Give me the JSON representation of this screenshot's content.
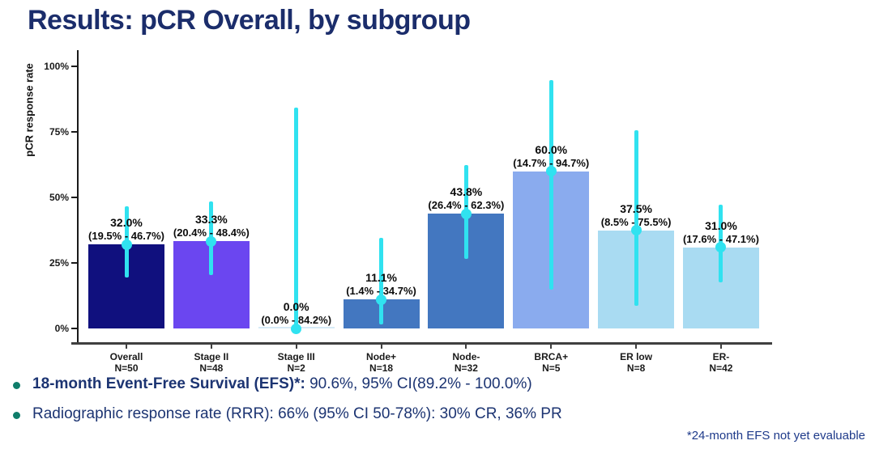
{
  "slide": {
    "title": "Results: pCR Overall, by subgroup",
    "footnote": "*24-month EFS not yet evaluable",
    "bullets": [
      {
        "bold": "18-month Event-Free Survival (EFS)*:",
        "rest": " 90.6%, 95% CI(89.2% - 100.0%)"
      },
      {
        "bold": "",
        "rest": "Radiographic response rate (RRR): 66% (95% CI 50-78%): 30% CR, 36% PR"
      }
    ]
  },
  "chart_data": {
    "type": "bar",
    "title": "",
    "xlabel": "",
    "ylabel": "pCR response rate",
    "ylim": [
      0,
      100
    ],
    "grid": false,
    "legend": null,
    "yticks": [
      0,
      25,
      50,
      75,
      100
    ],
    "ytick_labels": [
      "0%",
      "25%",
      "50%",
      "75%",
      "100%"
    ],
    "categories": [
      "Overall",
      "Stage II",
      "Stage III",
      "Node+",
      "Node-",
      "BRCA+",
      "ER low",
      "ER-"
    ],
    "n_labels": [
      "N=50",
      "N=48",
      "N=2",
      "N=18",
      "N=32",
      "N=5",
      "N=8",
      "N=42"
    ],
    "values": [
      32.0,
      33.3,
      0.0,
      11.1,
      43.8,
      60.0,
      37.5,
      31.0
    ],
    "ci_low": [
      19.5,
      20.4,
      0.0,
      1.4,
      26.4,
      14.7,
      8.5,
      17.6
    ],
    "ci_high": [
      46.7,
      48.4,
      84.2,
      34.7,
      62.3,
      94.7,
      75.5,
      47.1
    ],
    "value_labels": [
      "32.0%",
      "33.3%",
      "0.0%",
      "11.1%",
      "43.8%",
      "60.0%",
      "37.5%",
      "31.0%"
    ],
    "ci_labels": [
      "(19.5% - 46.7%)",
      "(20.4% - 48.4%)",
      "(0.0% - 84.2%)",
      "(1.4% - 34.7%)",
      "(26.4% - 62.3%)",
      "(14.7% - 94.7%)",
      "(8.5% - 75.5%)",
      "(17.6% - 47.1%)"
    ],
    "bar_colors": [
      "#10107e",
      "#6b46f0",
      "#d6eaf7",
      "#4377c0",
      "#4377c0",
      "#8aabee",
      "#a9dbf2",
      "#a9dbf2"
    ],
    "errorbar_color": "#30e2f0"
  }
}
